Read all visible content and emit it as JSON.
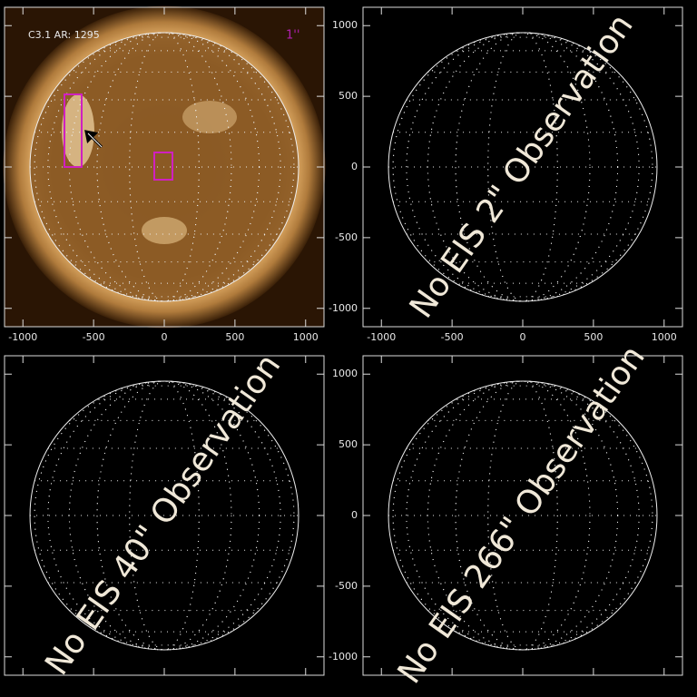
{
  "axis": {
    "lim": [
      -1130,
      1130
    ],
    "ticks": [
      -1000,
      -500,
      0,
      500,
      1000
    ],
    "disk_radius": 950
  },
  "panels": [
    {
      "image": true,
      "label": "C3.1 AR: 1295",
      "scale_label": "1''",
      "show_x_labels": true,
      "show_y_labels": false
    },
    {
      "image": false,
      "overlay": "No EIS 2\" Observation",
      "show_x_labels": true,
      "show_y_labels": true
    },
    {
      "image": false,
      "overlay": "No EIS 40\" Observation",
      "show_x_labels": false,
      "show_y_labels": false
    },
    {
      "image": false,
      "overlay": "No EIS 266\" Observation",
      "show_x_labels": false,
      "show_y_labels": true
    }
  ]
}
